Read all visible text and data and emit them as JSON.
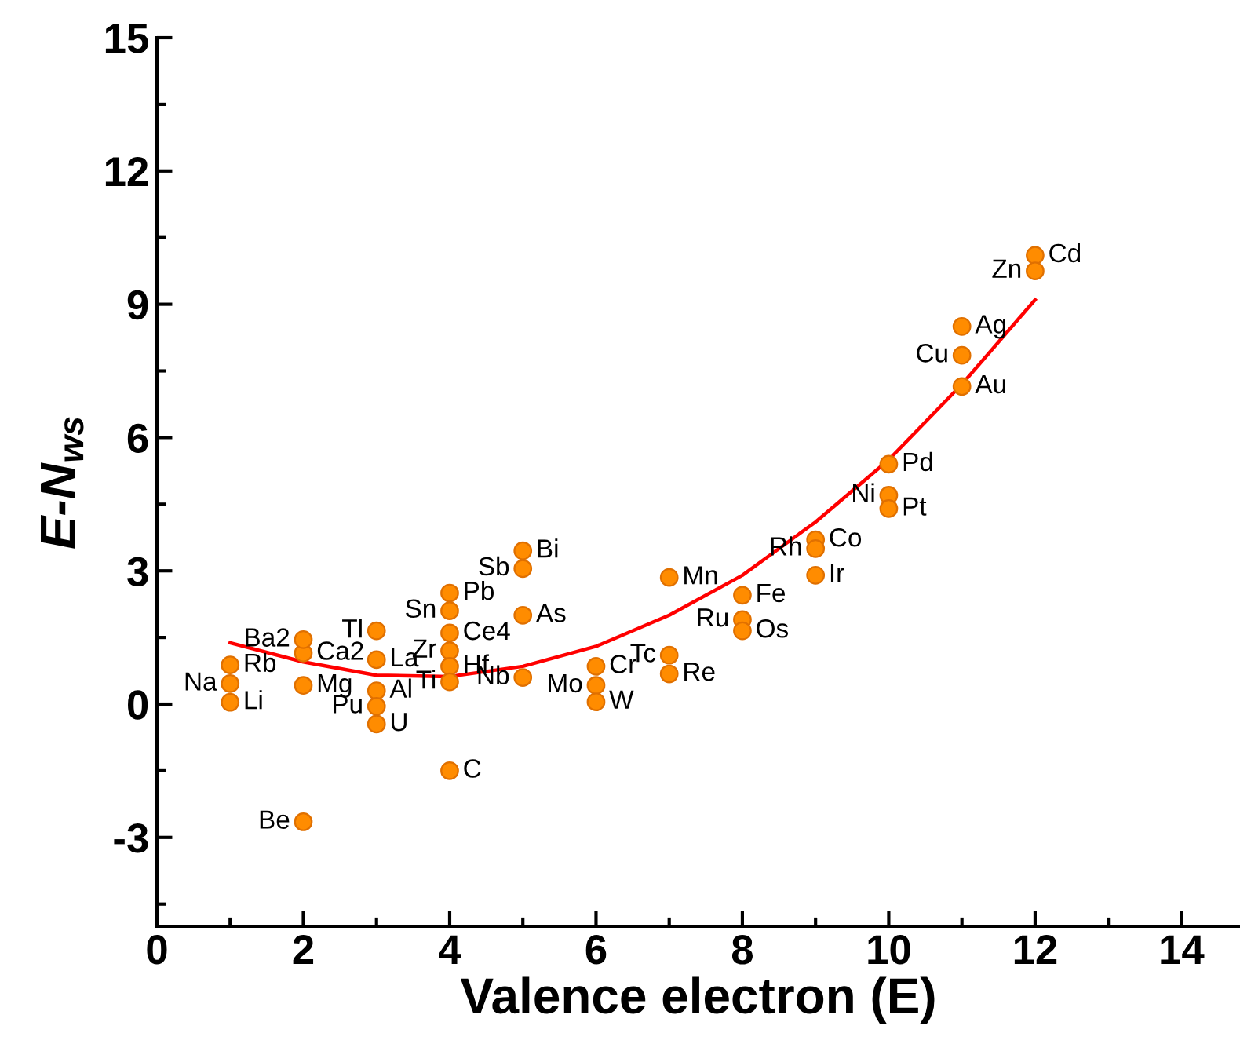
{
  "chart_data": {
    "type": "scatter",
    "xlabel": "Valence electron (E)",
    "ylabel": "E-N$_{ws}$",
    "xlim": [
      0,
      14.8
    ],
    "ylim": [
      -5,
      15
    ],
    "xticks": [
      0,
      2,
      4,
      6,
      8,
      10,
      12,
      14
    ],
    "yticks": [
      -3,
      0,
      3,
      6,
      9,
      12,
      15
    ],
    "grid": false,
    "legend": false,
    "marker": "circle",
    "series": [
      {
        "color": "#ff8c00",
        "x": [
          1,
          1,
          1,
          2,
          2,
          2,
          2,
          3,
          3,
          3,
          3,
          3,
          4,
          4,
          4,
          4,
          4,
          4,
          4,
          5,
          5,
          5,
          5,
          6,
          6,
          6,
          7,
          7,
          7,
          8,
          8,
          8,
          9,
          9,
          9,
          10,
          10,
          10,
          11,
          11,
          11,
          12,
          12
        ],
        "values": [
          0.88,
          0.46,
          0.04,
          1.15,
          1.45,
          0.42,
          -2.65,
          1.0,
          1.65,
          0.3,
          -0.05,
          -0.45,
          2.5,
          2.1,
          1.6,
          1.2,
          0.85,
          0.5,
          -1.5,
          3.45,
          3.05,
          2.0,
          0.6,
          0.85,
          0.42,
          0.05,
          2.85,
          1.1,
          0.68,
          2.45,
          1.9,
          1.65,
          3.7,
          3.5,
          2.9,
          5.4,
          4.7,
          4.4,
          8.5,
          7.85,
          7.15,
          10.1,
          9.75
        ]
      },
      {
        "type": "line",
        "color": "#ff0000",
        "line_style": "solid",
        "marker": "none",
        "x": [
          1,
          2,
          3,
          4,
          5,
          6,
          7,
          8,
          9,
          10,
          11,
          12
        ],
        "values": [
          1.38,
          0.95,
          0.65,
          0.62,
          0.85,
          1.3,
          2.0,
          2.9,
          4.1,
          5.5,
          7.2,
          9.1
        ]
      }
    ],
    "annotations": [
      {
        "text": "Rb",
        "x": 1,
        "y": 0.88
      },
      {
        "text": "Na",
        "x": 1,
        "y": 0.46
      },
      {
        "text": "Li",
        "x": 1,
        "y": 0.04
      },
      {
        "text": "Ca2",
        "x": 2,
        "y": 1.15
      },
      {
        "text": "Ba2",
        "x": 2,
        "y": 1.45
      },
      {
        "text": "Mg",
        "x": 2,
        "y": 0.42
      },
      {
        "text": "Be",
        "x": 2,
        "y": -2.65
      },
      {
        "text": "La",
        "x": 3,
        "y": 1.0
      },
      {
        "text": "Tl",
        "x": 3,
        "y": 1.65
      },
      {
        "text": "Al",
        "x": 3,
        "y": 0.3
      },
      {
        "text": "Pu",
        "x": 3,
        "y": -0.05
      },
      {
        "text": "U",
        "x": 3,
        "y": -0.45
      },
      {
        "text": "Pb",
        "x": 4,
        "y": 2.5
      },
      {
        "text": "Sn",
        "x": 4,
        "y": 2.1
      },
      {
        "text": "Ce4",
        "x": 4,
        "y": 1.6
      },
      {
        "text": "Zr",
        "x": 4,
        "y": 1.2
      },
      {
        "text": "Hf",
        "x": 4,
        "y": 0.85
      },
      {
        "text": "Ti",
        "x": 4,
        "y": 0.5
      },
      {
        "text": "C",
        "x": 4,
        "y": -1.5
      },
      {
        "text": "Bi",
        "x": 5,
        "y": 3.45
      },
      {
        "text": "Sb",
        "x": 5,
        "y": 3.05
      },
      {
        "text": "As",
        "x": 5,
        "y": 2.0
      },
      {
        "text": "Nb",
        "x": 5,
        "y": 0.6
      },
      {
        "text": "Cr",
        "x": 6,
        "y": 0.85
      },
      {
        "text": "Mo",
        "x": 6,
        "y": 0.42
      },
      {
        "text": "W",
        "x": 6,
        "y": 0.05
      },
      {
        "text": "Mn",
        "x": 7,
        "y": 2.85
      },
      {
        "text": "Tc",
        "x": 7,
        "y": 1.1
      },
      {
        "text": "Re",
        "x": 7,
        "y": 0.68
      },
      {
        "text": "Fe",
        "x": 8,
        "y": 2.45
      },
      {
        "text": "Ru",
        "x": 8,
        "y": 1.9
      },
      {
        "text": "Os",
        "x": 8,
        "y": 1.65
      },
      {
        "text": "Co",
        "x": 9,
        "y": 3.7
      },
      {
        "text": "Rh",
        "x": 9,
        "y": 3.5
      },
      {
        "text": "Ir",
        "x": 9,
        "y": 2.9
      },
      {
        "text": "Pd",
        "x": 10,
        "y": 5.4
      },
      {
        "text": "Ni",
        "x": 10,
        "y": 4.7
      },
      {
        "text": "Pt",
        "x": 10,
        "y": 4.4
      },
      {
        "text": "Ag",
        "x": 11,
        "y": 8.5
      },
      {
        "text": "Cu",
        "x": 11,
        "y": 7.85
      },
      {
        "text": "Au",
        "x": 11,
        "y": 7.15
      },
      {
        "text": "Cd",
        "x": 12,
        "y": 10.1
      },
      {
        "text": "Zn",
        "x": 12,
        "y": 9.75
      }
    ]
  }
}
